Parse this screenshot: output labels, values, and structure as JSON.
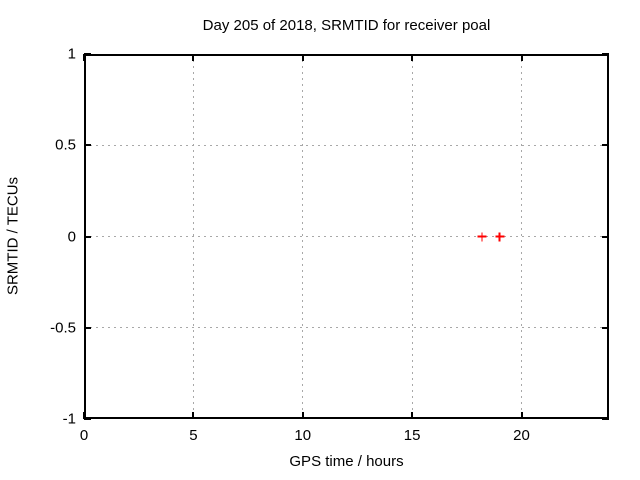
{
  "window": {
    "background": "#ffffff"
  },
  "chart_data": {
    "type": "scatter",
    "title": "Day 205 of 2018, SRMTID for receiver poal",
    "xlabel": "GPS time / hours",
    "ylabel": "SRMTID / TECUs",
    "xlim": [
      0,
      24
    ],
    "ylim": [
      -1,
      1
    ],
    "xticks": {
      "values": [
        0,
        5,
        10,
        15,
        20
      ],
      "labels": [
        "0",
        "5",
        "10",
        "15",
        "20"
      ]
    },
    "yticks": {
      "values": [
        -1,
        -0.5,
        0,
        0.5,
        1
      ],
      "labels": [
        "-1",
        "-0.5",
        "0",
        "0.5",
        "1"
      ]
    },
    "grid": true,
    "tick_style": "inward-mirrored",
    "legend": "none",
    "series": [
      {
        "name": "SRMTID",
        "marker": "plus",
        "color": "#ff0000",
        "points": [
          {
            "x": 18.2,
            "y": 0.0
          },
          {
            "x": 19.0,
            "y": 0.0
          }
        ]
      }
    ],
    "colors": {
      "grid": "#a8a8a8",
      "border": "#000000",
      "text": "#000000",
      "background": "#ffffff"
    }
  }
}
